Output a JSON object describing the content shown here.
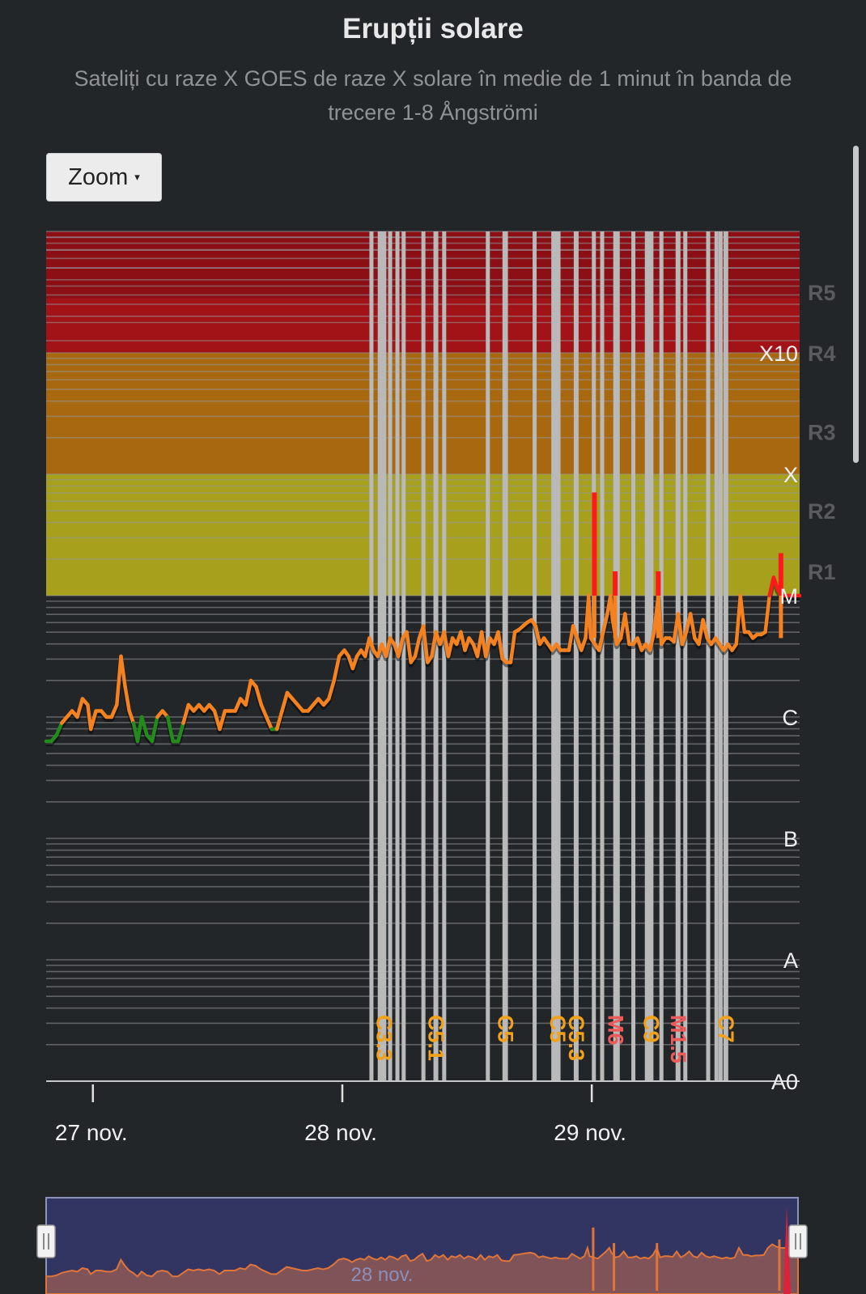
{
  "chart_data": {
    "type": "line",
    "title": "Erupții solare",
    "subtitle": "Sateliți cu raze X GOES de raze X solare în medie de 1 minut în banda de trecere 1-8 Ångströmi",
    "ylim": [
      -10,
      -2.5
    ],
    "x_ticks": [
      {
        "label": "27 nov.",
        "hour": 4.5
      },
      {
        "label": "28 nov.",
        "hour": 28.5
      },
      {
        "label": "29 nov.",
        "hour": 52.5
      }
    ],
    "xlim_hours": [
      0,
      72.5
    ],
    "class_labels": [
      {
        "label": "X10",
        "log": -3
      },
      {
        "label": "X",
        "log": -4
      },
      {
        "label": "M",
        "log": -5
      },
      {
        "label": "C",
        "log": -6
      },
      {
        "label": "B",
        "log": -7
      },
      {
        "label": "A",
        "log": -8
      },
      {
        "label": "A0",
        "log": -9
      }
    ],
    "radio_labels": [
      {
        "label": "R5",
        "log": -2.5
      },
      {
        "label": "R4",
        "log": -3
      },
      {
        "label": "R3",
        "log": -3.65
      },
      {
        "label": "R2",
        "log": -4.3
      },
      {
        "label": "R1",
        "log": -4.8
      }
    ],
    "bands": [
      {
        "from": -3,
        "to": -2.0,
        "color": "#8b0f14"
      },
      {
        "from": -4,
        "to": -3,
        "color": "#a8680f"
      },
      {
        "from": -5,
        "to": -4,
        "color": "#a6a01d"
      }
    ],
    "colors": {
      "x_band": "#8b0f14",
      "m_band": "#a6a01d",
      "c_line": "#f58220",
      "b_line": "#238b1c",
      "m_line": "#ff1a1a",
      "flare_c": "#f2a11a",
      "flare_m": "#ee5a5a",
      "flare_line": "#b9b9b9"
    },
    "series": [
      {
        "values": [
          [
            0,
            -6.2
          ],
          [
            0.5,
            -6.2
          ],
          [
            1,
            -6.15
          ],
          [
            1.5,
            -6.05
          ],
          [
            2,
            -6.0
          ],
          [
            2.5,
            -5.95
          ],
          [
            3,
            -6.0
          ],
          [
            3.5,
            -5.85
          ],
          [
            4,
            -5.9
          ],
          [
            4.3,
            -6.1
          ],
          [
            4.8,
            -5.95
          ],
          [
            5.3,
            -5.95
          ],
          [
            5.8,
            -6.0
          ],
          [
            6.3,
            -6.0
          ],
          [
            6.8,
            -5.9
          ],
          [
            7.2,
            -5.5
          ],
          [
            7.6,
            -5.75
          ],
          [
            8.0,
            -5.95
          ],
          [
            8.4,
            -6.05
          ],
          [
            8.8,
            -6.2
          ],
          [
            9.2,
            -6.0
          ],
          [
            9.7,
            -6.15
          ],
          [
            10.2,
            -6.2
          ],
          [
            10.7,
            -6.0
          ],
          [
            11.2,
            -5.95
          ],
          [
            11.7,
            -6.0
          ],
          [
            12.2,
            -6.2
          ],
          [
            12.7,
            -6.2
          ],
          [
            13.2,
            -6.05
          ],
          [
            13.7,
            -5.9
          ],
          [
            14.2,
            -5.95
          ],
          [
            14.7,
            -5.9
          ],
          [
            15.2,
            -5.95
          ],
          [
            15.7,
            -5.9
          ],
          [
            16.2,
            -5.95
          ],
          [
            16.7,
            -6.1
          ],
          [
            17.2,
            -5.95
          ],
          [
            17.7,
            -5.95
          ],
          [
            18.2,
            -5.95
          ],
          [
            18.7,
            -5.85
          ],
          [
            19.2,
            -5.9
          ],
          [
            19.7,
            -5.7
          ],
          [
            20.2,
            -5.75
          ],
          [
            20.7,
            -5.9
          ],
          [
            21.2,
            -6.0
          ],
          [
            21.7,
            -6.1
          ],
          [
            22.2,
            -6.1
          ],
          [
            22.7,
            -5.95
          ],
          [
            23.2,
            -5.8
          ],
          [
            23.7,
            -5.85
          ],
          [
            24.2,
            -5.9
          ],
          [
            24.7,
            -5.95
          ],
          [
            25.2,
            -5.95
          ],
          [
            25.7,
            -5.9
          ],
          [
            26.2,
            -5.85
          ],
          [
            26.7,
            -5.9
          ],
          [
            27.2,
            -5.85
          ],
          [
            27.7,
            -5.7
          ],
          [
            28.2,
            -5.5
          ],
          [
            28.7,
            -5.45
          ],
          [
            29.1,
            -5.5
          ],
          [
            29.5,
            -5.6
          ],
          [
            29.9,
            -5.5
          ],
          [
            30.3,
            -5.45
          ],
          [
            30.7,
            -5.5
          ],
          [
            31.1,
            -5.35
          ],
          [
            31.5,
            -5.45
          ],
          [
            31.9,
            -5.5
          ],
          [
            32.3,
            -5.4
          ],
          [
            32.7,
            -5.5
          ],
          [
            33.1,
            -5.35
          ],
          [
            33.5,
            -5.4
          ],
          [
            33.9,
            -5.5
          ],
          [
            34.3,
            -5.35
          ],
          [
            34.7,
            -5.3
          ],
          [
            35.1,
            -5.55
          ],
          [
            35.5,
            -5.5
          ],
          [
            35.9,
            -5.35
          ],
          [
            36.3,
            -5.25
          ],
          [
            36.7,
            -5.55
          ],
          [
            37.1,
            -5.5
          ],
          [
            37.5,
            -5.3
          ],
          [
            37.9,
            -5.4
          ],
          [
            38.3,
            -5.3
          ],
          [
            38.7,
            -5.5
          ],
          [
            39.1,
            -5.35
          ],
          [
            39.5,
            -5.4
          ],
          [
            39.9,
            -5.3
          ],
          [
            40.3,
            -5.45
          ],
          [
            40.7,
            -5.35
          ],
          [
            41.1,
            -5.4
          ],
          [
            41.5,
            -5.5
          ],
          [
            41.9,
            -5.3
          ],
          [
            42.3,
            -5.5
          ],
          [
            42.7,
            -5.35
          ],
          [
            43.1,
            -5.4
          ],
          [
            43.5,
            -5.3
          ],
          [
            43.9,
            -5.52
          ],
          [
            44.3,
            -5.55
          ],
          [
            44.7,
            -5.55
          ],
          [
            45.1,
            -5.3
          ],
          [
            45.5,
            -5.28
          ],
          [
            45.9,
            -5.25
          ],
          [
            46.3,
            -5.22
          ],
          [
            46.7,
            -5.2
          ],
          [
            47.1,
            -5.25
          ],
          [
            47.5,
            -5.4
          ],
          [
            47.9,
            -5.35
          ],
          [
            48.3,
            -5.4
          ],
          [
            48.7,
            -5.45
          ],
          [
            49.1,
            -5.4
          ],
          [
            49.5,
            -5.45
          ],
          [
            49.9,
            -5.45
          ],
          [
            50.3,
            -5.45
          ],
          [
            50.7,
            -5.25
          ],
          [
            51.1,
            -5.35
          ],
          [
            51.5,
            -5.45
          ],
          [
            51.9,
            -5.35
          ],
          [
            52.2,
            -5.0
          ],
          [
            52.4,
            -5.35
          ],
          [
            52.8,
            -5.4
          ],
          [
            53.2,
            -5.45
          ],
          [
            53.6,
            -5.3
          ],
          [
            54.0,
            -5.15
          ],
          [
            54.3,
            -5.0
          ],
          [
            54.5,
            -5.2
          ],
          [
            54.9,
            -5.4
          ],
          [
            55.3,
            -5.35
          ],
          [
            55.7,
            -5.15
          ],
          [
            56.1,
            -5.4
          ],
          [
            56.5,
            -5.4
          ],
          [
            56.9,
            -5.35
          ],
          [
            57.3,
            -5.45
          ],
          [
            57.7,
            -5.4
          ],
          [
            58.1,
            -5.45
          ],
          [
            58.5,
            -5.3
          ],
          [
            58.9,
            -5.0
          ],
          [
            59.2,
            -5.4
          ],
          [
            59.6,
            -5.35
          ],
          [
            60.0,
            -5.35
          ],
          [
            60.4,
            -5.38
          ],
          [
            60.8,
            -5.15
          ],
          [
            61.2,
            -5.4
          ],
          [
            61.6,
            -5.3
          ],
          [
            62.0,
            -5.15
          ],
          [
            62.4,
            -5.35
          ],
          [
            62.8,
            -5.4
          ],
          [
            63.2,
            -5.2
          ],
          [
            63.6,
            -5.35
          ],
          [
            64.0,
            -5.4
          ],
          [
            64.4,
            -5.35
          ],
          [
            64.8,
            -5.4
          ],
          [
            65.2,
            -5.45
          ],
          [
            65.6,
            -5.4
          ],
          [
            66.0,
            -5.45
          ],
          [
            66.4,
            -5.4
          ],
          [
            66.8,
            -5.0
          ],
          [
            67.2,
            -5.3
          ],
          [
            67.6,
            -5.3
          ],
          [
            68.0,
            -5.35
          ],
          [
            68.4,
            -5.32
          ],
          [
            68.8,
            -5.32
          ],
          [
            69.2,
            -5.3
          ],
          [
            69.6,
            -5.0
          ],
          [
            70.0,
            -4.85
          ],
          [
            70.4,
            -4.95
          ],
          [
            70.8,
            -5.0
          ],
          [
            71.2,
            -5.0
          ],
          [
            72.0,
            -5.0
          ],
          [
            72.5,
            -5.0
          ]
        ]
      }
    ],
    "spikes": [
      {
        "hour": 52.75,
        "top": -4.15
      },
      {
        "hour": 54.75,
        "top": -4.8
      },
      {
        "hour": 58.9,
        "top": -4.8
      },
      {
        "hour": 70.7,
        "top": -4.65
      }
    ],
    "flares": [
      {
        "label": "C3.3",
        "hour": 32.5,
        "class": "C"
      },
      {
        "label": "C5.1",
        "hour": 37.5,
        "class": "C"
      },
      {
        "label": "C5",
        "hour": 44.2,
        "class": "C"
      },
      {
        "label": "C5",
        "hour": 49.2,
        "class": "C"
      },
      {
        "label": "C5.3",
        "hour": 51.0,
        "class": "C"
      },
      {
        "label": "M6",
        "hour": 54.8,
        "class": "M"
      },
      {
        "label": "C9",
        "hour": 58.2,
        "class": "C"
      },
      {
        "label": "M1.5",
        "hour": 60.8,
        "class": "M"
      },
      {
        "label": "C7",
        "hour": 65.4,
        "class": "C"
      }
    ],
    "flare_lines_hours": [
      31.3,
      32.1,
      33.1,
      33.8,
      34.4,
      36.3,
      38.3,
      42.5,
      44.1,
      47.0,
      48.8,
      49.3,
      52.7,
      53.5,
      55.0,
      56.5,
      57.8,
      59.2,
      61.5,
      63.7,
      64.5,
      64.9
    ],
    "navigator_label": "28 nov."
  },
  "ui": {
    "zoom_label": "Zoom",
    "zoom_caret": "▾"
  }
}
